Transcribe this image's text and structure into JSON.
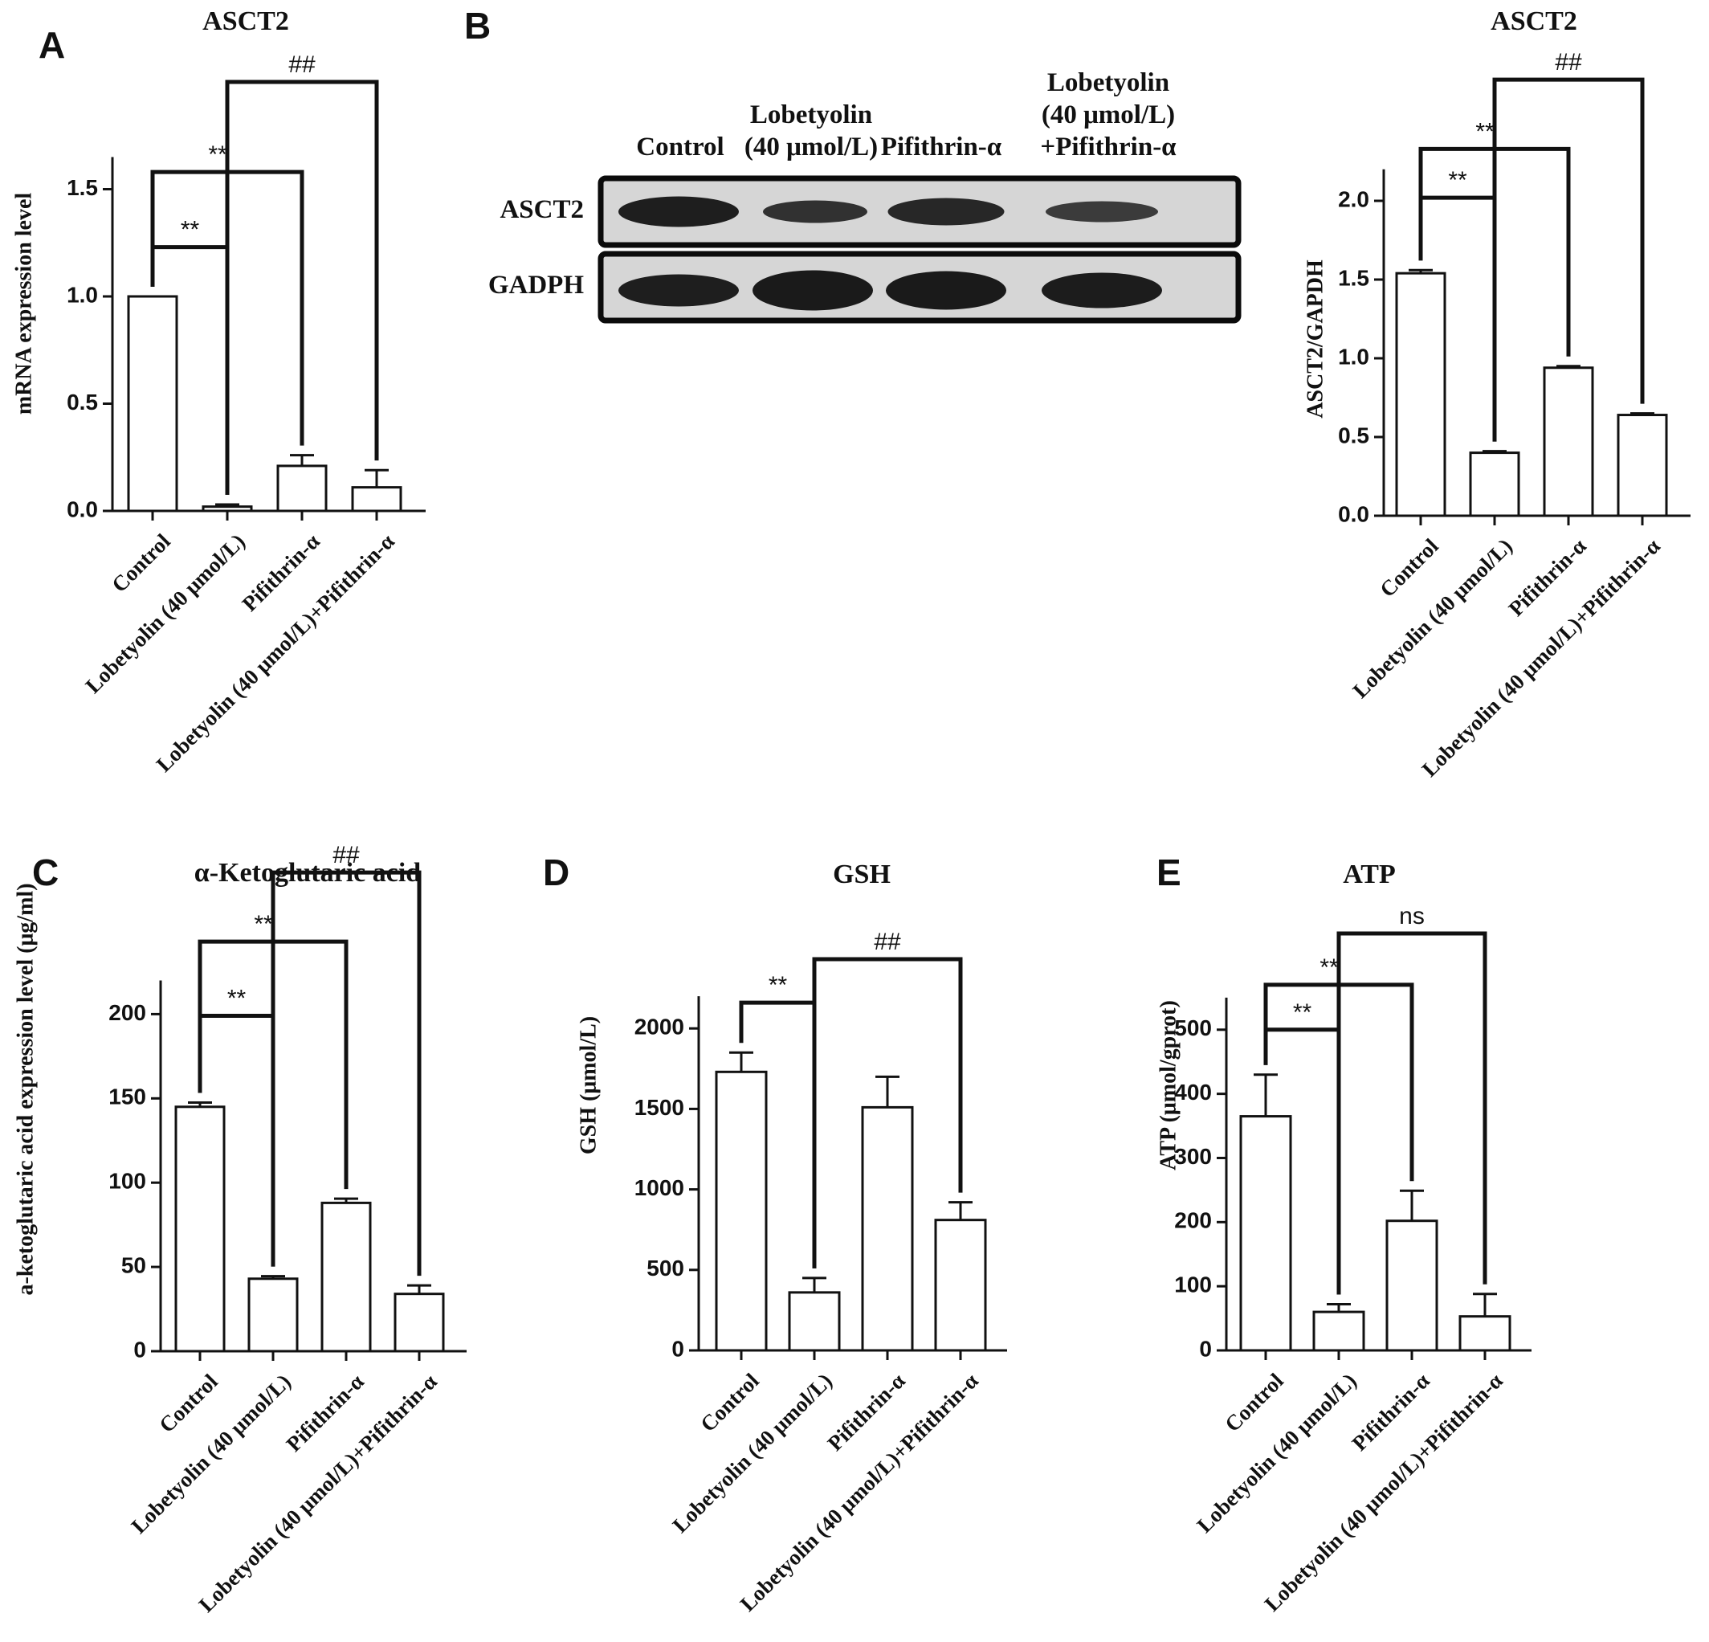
{
  "panel_letters": {
    "a": "A",
    "b": "B",
    "c": "C",
    "d": "D",
    "e": "E"
  },
  "western_blot": {
    "lane_headers": [
      "Control",
      [
        "Lobetyolin",
        "(40 μmol/L)"
      ],
      "Pifithrin-α",
      [
        "Lobetyolin",
        "(40 μmol/L)",
        "+Pifithrin-α"
      ]
    ],
    "row_labels": [
      "ASCT2",
      "GADPH"
    ]
  },
  "chart_data": [
    {
      "id": "A",
      "type": "bar",
      "title": "ASCT2",
      "ylabel": "mRNA expression level",
      "xlabel": "",
      "categories": [
        "Control",
        "Lobetyolin (40 μmol/L)",
        "Pifithrin-α",
        "Lobetyolin (40 μmol/L)+Pifithrin-α"
      ],
      "values": [
        1.0,
        0.02,
        0.21,
        0.11
      ],
      "errors": [
        0,
        0.01,
        0.05,
        0.08
      ],
      "yticks": [
        0.0,
        0.5,
        1.0,
        1.5
      ],
      "ytick_labels": [
        "0.0",
        "0.5",
        "1.0",
        "1.5"
      ],
      "ylim": [
        0,
        1.65
      ],
      "grid": false,
      "significance": [
        {
          "from": 0,
          "to": 1,
          "label": "**",
          "level": 1.23
        },
        {
          "from": 0,
          "to": 2,
          "label": "**",
          "level": 1.58
        },
        {
          "from": 1,
          "to": 3,
          "label": "##",
          "level": 2.0
        }
      ]
    },
    {
      "id": "B",
      "type": "bar",
      "title": "ASCT2",
      "ylabel": "ASCT2/GAPDH",
      "xlabel": "",
      "categories": [
        "Control",
        "Lobetyolin (40 μmol/L)",
        "Pifithrin-α",
        "Lobetyolin (40 μmol/L)+Pifithrin-α"
      ],
      "values": [
        1.54,
        0.4,
        0.94,
        0.64
      ],
      "errors": [
        0.02,
        0.01,
        0.01,
        0.01
      ],
      "yticks": [
        0.0,
        0.5,
        1.0,
        1.5,
        2.0
      ],
      "ytick_labels": [
        "0.0",
        "0.5",
        "1.0",
        "1.5",
        "2.0"
      ],
      "ylim": [
        0,
        2.2
      ],
      "grid": false,
      "significance": [
        {
          "from": 0,
          "to": 1,
          "label": "**",
          "level": 2.02
        },
        {
          "from": 0,
          "to": 2,
          "label": "**",
          "level": 2.33
        },
        {
          "from": 1,
          "to": 3,
          "label": "##",
          "level": 2.77
        }
      ]
    },
    {
      "id": "C",
      "type": "bar",
      "title": "α-Ketoglutaric acid",
      "ylabel": "a-ketoglutaric acid expression level (μg/ml)",
      "xlabel": "",
      "categories": [
        "Control",
        "Lobetyolin (40 μmol/L)",
        "Pifithrin-α",
        "Lobetyolin (40 μmol/L)+Pifithrin-α"
      ],
      "values": [
        145,
        43,
        88,
        34
      ],
      "errors": [
        2.5,
        1.5,
        2.5,
        5
      ],
      "yticks": [
        0,
        50,
        100,
        150,
        200
      ],
      "ytick_labels": [
        "0",
        "50",
        "100",
        "150",
        "200"
      ],
      "ylim": [
        0,
        220
      ],
      "grid": false,
      "significance": [
        {
          "from": 0,
          "to": 1,
          "label": "**",
          "level": 199
        },
        {
          "from": 0,
          "to": 2,
          "label": "**",
          "level": 243
        },
        {
          "from": 1,
          "to": 3,
          "label": "##",
          "level": 284
        }
      ]
    },
    {
      "id": "D",
      "type": "bar",
      "title": "GSH",
      "ylabel": "GSH (μmol/L)",
      "xlabel": "",
      "categories": [
        "Control",
        "Lobetyolin (40 μmol/L)",
        "Pifithrin-α",
        "Lobetyolin (40 μmol/L)+Pifithrin-α"
      ],
      "values": [
        1730,
        360,
        1510,
        810
      ],
      "errors": [
        120,
        90,
        190,
        110
      ],
      "yticks": [
        0,
        500,
        1000,
        1500,
        2000
      ],
      "ytick_labels": [
        "0",
        "500",
        "1000",
        "1500",
        "2000"
      ],
      "ylim": [
        0,
        2200
      ],
      "grid": false,
      "significance": [
        {
          "from": 0,
          "to": 1,
          "label": "**",
          "level": 2160
        },
        {
          "from": 1,
          "to": 3,
          "label": "##",
          "level": 2430
        }
      ]
    },
    {
      "id": "E",
      "type": "bar",
      "title": "ATP",
      "ylabel": "ATP (μmol/gprot)",
      "xlabel": "",
      "categories": [
        "Control",
        "Lobetyolin (40 μmol/L)",
        "Pifithrin-α",
        "Lobetyolin (40 μmol/L)+Pifithrin-α"
      ],
      "values": [
        365,
        60,
        202,
        53
      ],
      "errors": [
        65,
        12,
        47,
        35
      ],
      "yticks": [
        0,
        100,
        200,
        300,
        400,
        500
      ],
      "ytick_labels": [
        "0",
        "100",
        "200",
        "300",
        "400",
        "500"
      ],
      "ylim": [
        0,
        550
      ],
      "grid": false,
      "significance": [
        {
          "from": 0,
          "to": 1,
          "label": "**",
          "level": 500
        },
        {
          "from": 0,
          "to": 2,
          "label": "**",
          "level": 570
        },
        {
          "from": 1,
          "to": 3,
          "label": "ns",
          "level": 650
        }
      ]
    }
  ]
}
